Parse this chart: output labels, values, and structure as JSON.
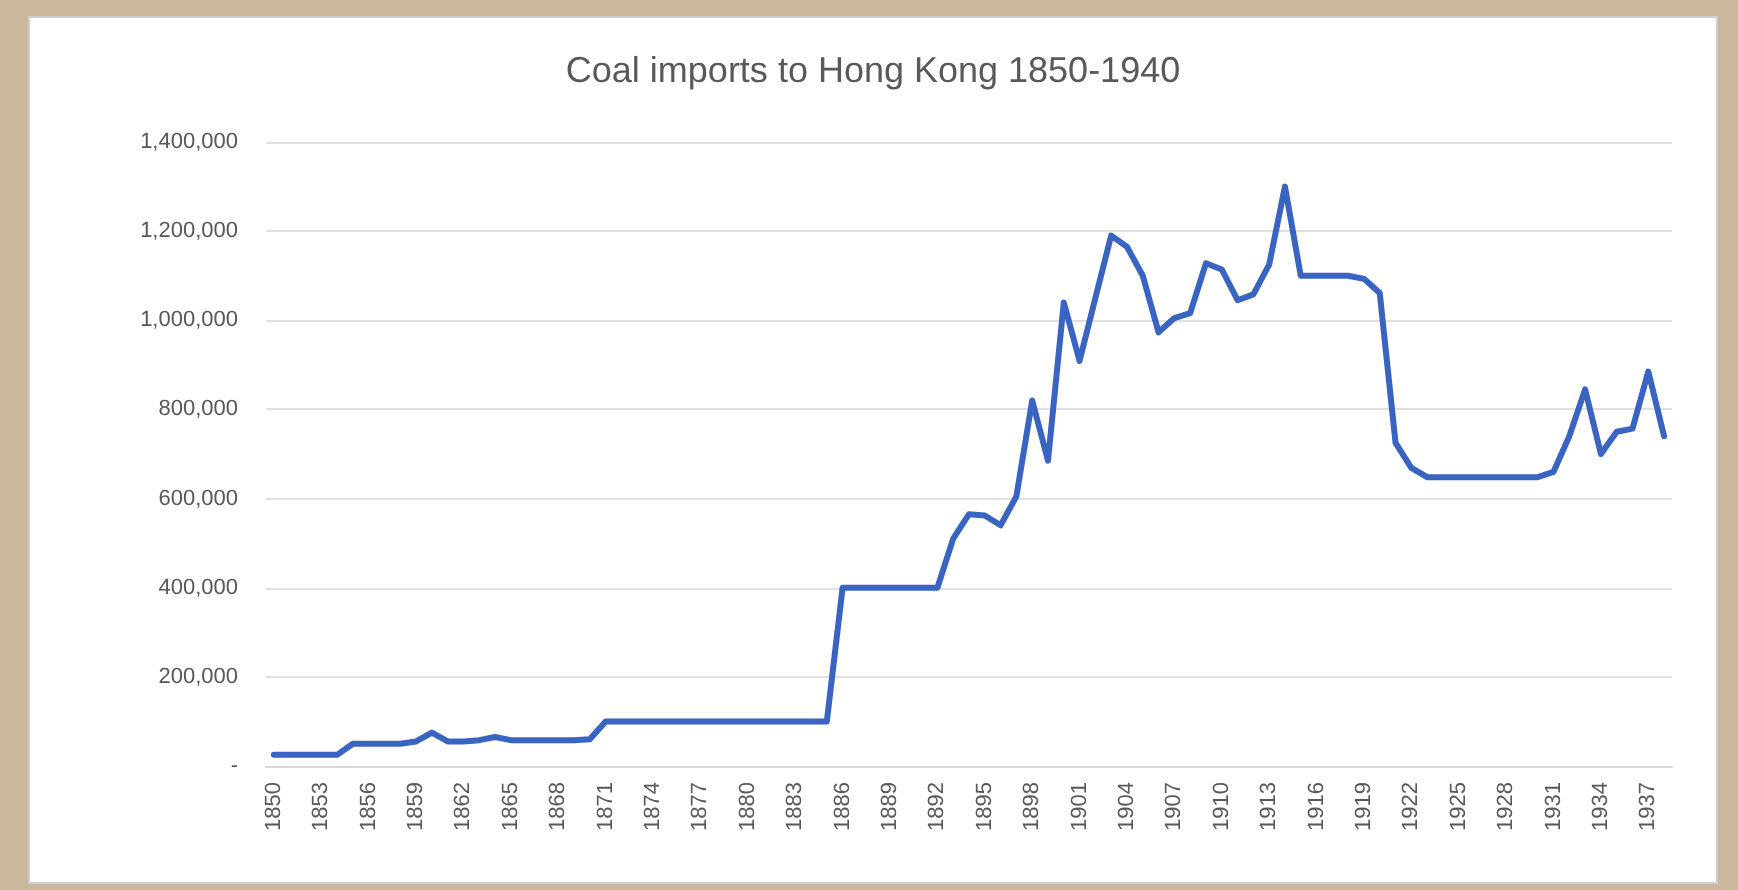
{
  "chart_data": {
    "type": "line",
    "title": "Coal imports to Hong Kong 1850-1940",
    "categories": [
      "1850",
      null,
      null,
      "1853",
      null,
      null,
      "1856",
      null,
      null,
      "1859",
      null,
      null,
      "1862",
      null,
      null,
      "1865",
      null,
      null,
      "1868",
      null,
      null,
      "1871",
      null,
      null,
      "1874",
      null,
      null,
      "1877",
      null,
      null,
      "1880",
      null,
      null,
      "1883",
      null,
      null,
      "1886",
      null,
      null,
      "1889",
      null,
      null,
      "1892",
      null,
      null,
      "1895",
      null,
      null,
      "1898",
      null,
      null,
      "1901",
      null,
      null,
      "1904",
      null,
      null,
      "1907",
      null,
      null,
      "1910",
      null,
      null,
      "1913",
      null,
      null,
      "1916",
      null,
      null,
      "1919",
      null,
      null,
      "1922",
      null,
      null,
      "1925",
      null,
      null,
      "1928",
      null,
      null,
      "1931",
      null,
      null,
      "1934",
      null,
      null,
      "1937",
      null
    ],
    "values": [
      25000,
      25000,
      25000,
      25000,
      25000,
      50000,
      50000,
      50000,
      50000,
      55000,
      75000,
      55000,
      55000,
      58000,
      65000,
      58000,
      58000,
      58000,
      58000,
      58000,
      60000,
      100000,
      100000,
      100000,
      100000,
      100000,
      100000,
      100000,
      100000,
      100000,
      100000,
      100000,
      100000,
      100000,
      100000,
      100000,
      400000,
      400000,
      400000,
      400000,
      400000,
      400000,
      400000,
      510000,
      565000,
      562000,
      540000,
      605000,
      820000,
      685000,
      1040000,
      909000,
      1050000,
      1190000,
      1165000,
      1100000,
      973000,
      1005000,
      1016000,
      1128000,
      1114000,
      1045000,
      1058000,
      1125000,
      1300000,
      1100000,
      1100000,
      1100000,
      1100000,
      1093000,
      1061000,
      725000,
      669000,
      648000,
      648000,
      648000,
      648000,
      648000,
      648000,
      648000,
      648000,
      660000,
      740000,
      845000,
      700000,
      750000,
      757000,
      885000,
      740000
    ],
    "color": "#3a64c2",
    "ylim": [
      0,
      1400000
    ],
    "yticks": [
      {
        "value": 0,
        "label": "-"
      },
      {
        "value": 200000,
        "label": "200,000"
      },
      {
        "value": 400000,
        "label": "400,000"
      },
      {
        "value": 600000,
        "label": "600,000"
      },
      {
        "value": 800000,
        "label": "800,000"
      },
      {
        "value": 1000000,
        "label": "1,000,000"
      },
      {
        "value": 1200000,
        "label": "1,200,000"
      },
      {
        "value": 1400000,
        "label": "1,400,000"
      }
    ],
    "grid": "y",
    "marker": "none",
    "line_style": "solid"
  }
}
